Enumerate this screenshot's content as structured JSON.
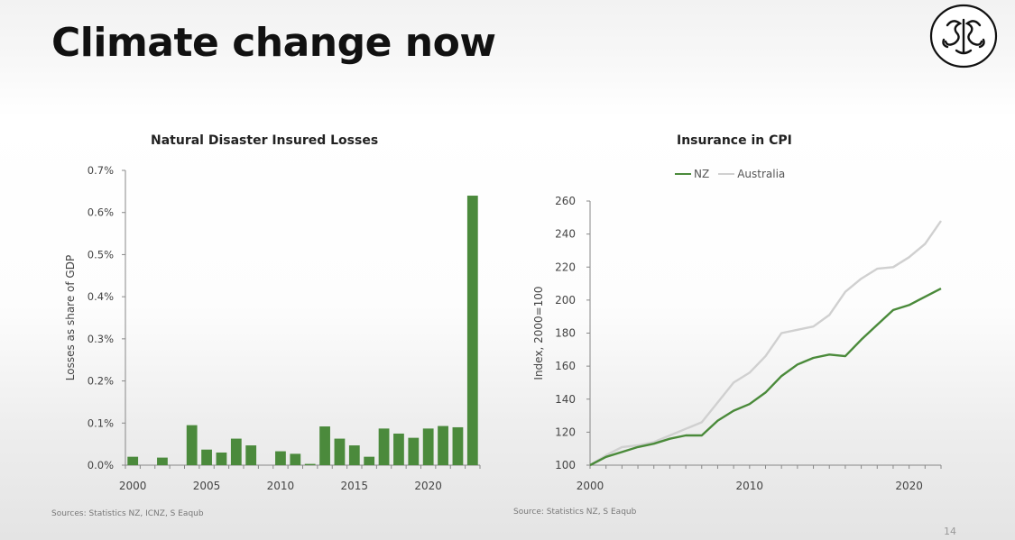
{
  "slide": {
    "title": "Climate change now",
    "page_number": "14"
  },
  "colors": {
    "nz_green": "#4a8a3a",
    "bar_green": "#4b8a3c",
    "australia_gray": "#d0d0d0",
    "axis": "#888888"
  },
  "logo_icon": "stylized-monogram-logo-icon",
  "left_panel": {
    "title": "Natural Disaster Insured Losses",
    "source": "Sources: Statistics NZ, ICNZ, S Eaqub"
  },
  "right_panel": {
    "title": "Insurance in CPI",
    "source": "Source: Statistics NZ, S Eaqub",
    "legend": [
      "NZ",
      "Australia"
    ]
  },
  "chart_data": [
    {
      "type": "bar",
      "title": "Natural Disaster Insured Losses",
      "xlabel": "",
      "ylabel": "Losses as share of GDP",
      "ylim": [
        0,
        0.7
      ],
      "y_unit": "%",
      "yticks": [
        "0.0%",
        "0.1%",
        "0.2%",
        "0.3%",
        "0.4%",
        "0.5%",
        "0.6%",
        "0.7%"
      ],
      "xticks": [
        "2000",
        "2005",
        "2010",
        "2015",
        "2020"
      ],
      "categories": [
        2000,
        2001,
        2002,
        2003,
        2004,
        2005,
        2006,
        2007,
        2008,
        2009,
        2010,
        2011,
        2012,
        2013,
        2014,
        2015,
        2016,
        2017,
        2018,
        2019,
        2020,
        2021,
        2022,
        2023
      ],
      "values": [
        0.02,
        0.0,
        0.018,
        0.0,
        0.095,
        0.037,
        0.03,
        0.063,
        0.047,
        0.0,
        0.033,
        0.027,
        0.003,
        0.092,
        0.063,
        0.047,
        0.02,
        0.087,
        0.075,
        0.065,
        0.087,
        0.093,
        0.09,
        0.64
      ],
      "grid": false
    },
    {
      "type": "line",
      "title": "Insurance in CPI",
      "xlabel": "",
      "ylabel": "Index, 2000=100",
      "xlim": [
        2000,
        2022
      ],
      "ylim": [
        100,
        260
      ],
      "yticks": [
        "100",
        "120",
        "140",
        "160",
        "180",
        "200",
        "220",
        "240",
        "260"
      ],
      "xticks": [
        "2000",
        "2010",
        "2020"
      ],
      "legend_position": "top",
      "grid": false,
      "x": [
        2000,
        2001,
        2002,
        2003,
        2004,
        2005,
        2006,
        2007,
        2008,
        2009,
        2010,
        2011,
        2012,
        2013,
        2014,
        2015,
        2016,
        2017,
        2018,
        2019,
        2020,
        2021,
        2022
      ],
      "series": [
        {
          "name": "NZ",
          "values": [
            100,
            105,
            108,
            111,
            113,
            116,
            118,
            118,
            127,
            133,
            137,
            144,
            154,
            161,
            165,
            167,
            166,
            176,
            185,
            194,
            197,
            202,
            207
          ]
        },
        {
          "name": "Australia",
          "values": [
            100,
            106,
            111,
            112,
            114,
            118,
            122,
            126,
            138,
            150,
            156,
            166,
            180,
            182,
            184,
            191,
            205,
            213,
            219,
            220,
            226,
            234,
            248
          ]
        }
      ]
    }
  ]
}
